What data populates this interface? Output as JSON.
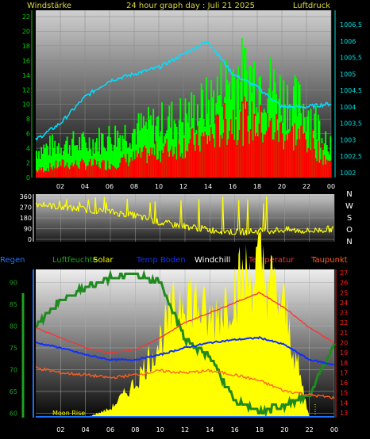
{
  "header": {
    "left": "Windstärke",
    "center": "24 hour graph day : Juli 21 2025",
    "right": "Luftdruck"
  },
  "legend": {
    "regen": "Regen",
    "luftfeuchte": "Luftfeuchte",
    "solar": "Solar",
    "temp_boden": "Temp Boden",
    "windchill": "Windchill",
    "temperatur": "Temperatur",
    "taupunkt": "Taupunkt"
  },
  "direction_labels": [
    "N",
    "W",
    "S",
    "O",
    "N"
  ],
  "annotation": "Moon Rise",
  "colors": {
    "header": "#d8d840",
    "axis_left": "#00d000",
    "axis_right": "#00e0e0",
    "wind_gust": "#00ff00",
    "wind_avg": "#ff0000",
    "pressure": "#00e0ff",
    "direction": "#ffff00",
    "regen": "#2070ff",
    "luftfeuchte": "#20a020",
    "solar": "#ffff00",
    "temp_boden": "#1030ff",
    "windchill": "#ffffff",
    "temperatur": "#ff3030",
    "taupunkt": "#ff6020",
    "temp_axis": "#ff2020",
    "dir_axis": "#ffffff"
  },
  "x_ticks": [
    "02",
    "04",
    "06",
    "08",
    "10",
    "12",
    "14",
    "16",
    "18",
    "20",
    "22",
    "00"
  ],
  "chart_data": [
    {
      "type": "bar",
      "yaxis_left": {
        "ylim": [
          0,
          22
        ],
        "ticks": [
          "0",
          "2",
          "4",
          "6",
          "8",
          "10",
          "12",
          "14",
          "16",
          "18",
          "20",
          "22"
        ]
      },
      "yaxis_right": {
        "ylim": [
          1002,
          1006.5
        ],
        "ticks": [
          "1002",
          "1002,5",
          "1003",
          "1003,5",
          "1004",
          "1004,5",
          "1005",
          "1005,5",
          "1006",
          "1006,5"
        ]
      },
      "x_hours": [
        0,
        2,
        4,
        6,
        8,
        10,
        12,
        14,
        16,
        18,
        20,
        22,
        24
      ],
      "series": [
        {
          "name": "Windstärke",
          "values": [
            4,
            5,
            5,
            6,
            7,
            8,
            9,
            11,
            15,
            15,
            12,
            10,
            5
          ]
        },
        {
          "name": "Luftdruck",
          "values": [
            1003,
            1003.5,
            1004.3,
            1004.8,
            1005.0,
            1005.2,
            1005.6,
            1006.0,
            1005.0,
            1004.6,
            1004.0,
            1004.0,
            1004.1
          ]
        }
      ],
      "wind_avg": [
        1,
        2,
        2,
        2,
        3,
        4,
        5,
        6,
        9,
        8,
        7,
        6,
        2
      ]
    },
    {
      "type": "scatter",
      "ylim": [
        0,
        360
      ],
      "ticks": [
        "0",
        "90",
        "180",
        "270",
        "360"
      ],
      "x_hours": [
        0,
        2,
        4,
        6,
        8,
        10,
        12,
        14,
        16,
        18,
        20,
        22,
        24
      ],
      "values": [
        300,
        270,
        250,
        230,
        200,
        140,
        110,
        80,
        60,
        70,
        80,
        70,
        90
      ]
    },
    {
      "type": "line",
      "yaxis_left": {
        "ylim": [
          59,
          93
        ],
        "ticks": [
          "60",
          "65",
          "70",
          "75",
          "80",
          "85",
          "90"
        ]
      },
      "yaxis_right": {
        "ylim": [
          13,
          27
        ],
        "ticks": [
          "13",
          "14",
          "15",
          "16",
          "17",
          "18",
          "19",
          "20",
          "21",
          "22",
          "23",
          "24",
          "25",
          "26",
          "27"
        ]
      },
      "x_hours": [
        0,
        2,
        4,
        6,
        8,
        10,
        12,
        14,
        16,
        18,
        20,
        22,
        24
      ],
      "series": [
        {
          "name": "Temperatur",
          "values": [
            21.5,
            20.5,
            19.5,
            19.0,
            19.3,
            20.5,
            22.0,
            23.0,
            24.0,
            25.0,
            23.5,
            21.5,
            20.0
          ]
        },
        {
          "name": "Temp Boden",
          "values": [
            20.0,
            19.5,
            18.8,
            18.3,
            18.3,
            18.8,
            19.5,
            20.0,
            20.3,
            20.5,
            19.8,
            18.3,
            17.8
          ]
        },
        {
          "name": "Taupunkt",
          "values": [
            17.5,
            17.0,
            16.8,
            16.5,
            16.8,
            17.2,
            17.0,
            17.2,
            16.8,
            16.2,
            15.2,
            14.8,
            14.5
          ]
        },
        {
          "name": "Luftfeuchte",
          "values": [
            80,
            86,
            89,
            91,
            92,
            90,
            77,
            73,
            63,
            60,
            62,
            64,
            76
          ]
        }
      ],
      "solar": [
        0,
        0,
        0,
        2,
        8,
        18,
        30,
        22,
        30,
        35,
        25,
        0,
        0
      ]
    }
  ]
}
